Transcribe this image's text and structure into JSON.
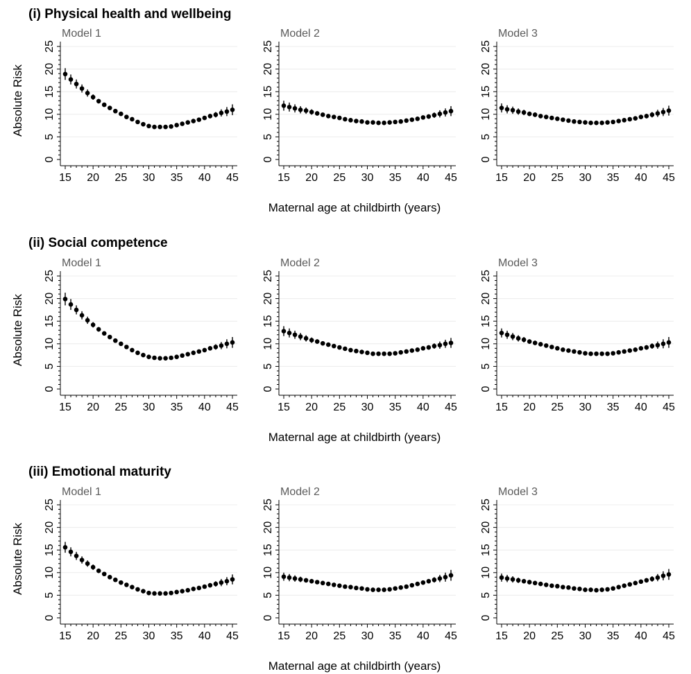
{
  "figure": {
    "xlabel": "Maternal age at childbirth (years)",
    "ylabel": "Absolute Risk",
    "sections": [
      {
        "title": "(i) Physical health and wellbeing"
      },
      {
        "title": "(ii) Social competence"
      },
      {
        "title": "(iii) Emotional maturity"
      }
    ]
  },
  "chart_data": [
    {
      "type": "scatter",
      "section": "(i) Physical health and wellbeing",
      "title": "Model 1",
      "xlabel": "Maternal age at childbirth (years)",
      "ylabel": "Absolute Risk",
      "xlim": [
        15,
        45
      ],
      "ylim": [
        0,
        25
      ],
      "xticks": [
        15,
        20,
        25,
        30,
        35,
        40,
        45
      ],
      "yticks": [
        0,
        5,
        10,
        15,
        20,
        25
      ],
      "grid": true,
      "x": [
        15,
        16,
        17,
        18,
        19,
        20,
        21,
        22,
        23,
        24,
        25,
        26,
        27,
        28,
        29,
        30,
        31,
        32,
        33,
        34,
        35,
        36,
        37,
        38,
        39,
        40,
        41,
        42,
        43,
        44,
        45
      ],
      "y": [
        18.9,
        17.7,
        16.7,
        15.7,
        14.7,
        13.8,
        12.9,
        12.1,
        11.4,
        10.7,
        10.1,
        9.4,
        8.9,
        8.3,
        7.8,
        7.4,
        7.2,
        7.2,
        7.2,
        7.3,
        7.6,
        7.9,
        8.2,
        8.5,
        8.8,
        9.2,
        9.6,
        9.9,
        10.3,
        10.6,
        11.0
      ],
      "ci": [
        1.3,
        1.1,
        1.0,
        0.9,
        0.8,
        0.6,
        0.5,
        0.4,
        0.3,
        0.3,
        0.2,
        0.2,
        0.2,
        0.2,
        0.2,
        0.2,
        0.2,
        0.2,
        0.2,
        0.2,
        0.2,
        0.2,
        0.2,
        0.3,
        0.3,
        0.4,
        0.5,
        0.6,
        0.8,
        1.0,
        1.2
      ]
    },
    {
      "type": "scatter",
      "section": "(i) Physical health and wellbeing",
      "title": "Model 2",
      "xlabel": "Maternal age at childbirth (years)",
      "ylabel": "Absolute Risk",
      "xlim": [
        15,
        45
      ],
      "ylim": [
        0,
        25
      ],
      "xticks": [
        15,
        20,
        25,
        30,
        35,
        40,
        45
      ],
      "yticks": [
        0,
        5,
        10,
        15,
        20,
        25
      ],
      "grid": true,
      "x": [
        15,
        16,
        17,
        18,
        19,
        20,
        21,
        22,
        23,
        24,
        25,
        26,
        27,
        28,
        29,
        30,
        31,
        32,
        33,
        34,
        35,
        36,
        37,
        38,
        39,
        40,
        41,
        42,
        43,
        44,
        45
      ],
      "y": [
        11.9,
        11.6,
        11.3,
        11.0,
        10.8,
        10.5,
        10.2,
        9.9,
        9.6,
        9.4,
        9.2,
        8.9,
        8.7,
        8.5,
        8.4,
        8.2,
        8.2,
        8.1,
        8.1,
        8.2,
        8.3,
        8.4,
        8.6,
        8.8,
        9.0,
        9.3,
        9.5,
        9.8,
        10.1,
        10.4,
        10.7
      ],
      "ci": [
        1.1,
        1.0,
        0.9,
        0.8,
        0.7,
        0.6,
        0.5,
        0.4,
        0.3,
        0.3,
        0.2,
        0.2,
        0.2,
        0.2,
        0.2,
        0.2,
        0.2,
        0.2,
        0.2,
        0.2,
        0.2,
        0.2,
        0.2,
        0.3,
        0.3,
        0.4,
        0.5,
        0.6,
        0.8,
        0.9,
        1.1
      ]
    },
    {
      "type": "scatter",
      "section": "(i) Physical health and wellbeing",
      "title": "Model 3",
      "xlabel": "Maternal age at childbirth (years)",
      "ylabel": "Absolute Risk",
      "xlim": [
        15,
        45
      ],
      "ylim": [
        0,
        25
      ],
      "xticks": [
        15,
        20,
        25,
        30,
        35,
        40,
        45
      ],
      "yticks": [
        0,
        5,
        10,
        15,
        20,
        25
      ],
      "grid": true,
      "x": [
        15,
        16,
        17,
        18,
        19,
        20,
        21,
        22,
        23,
        24,
        25,
        26,
        27,
        28,
        29,
        30,
        31,
        32,
        33,
        34,
        35,
        36,
        37,
        38,
        39,
        40,
        41,
        42,
        43,
        44,
        45
      ],
      "y": [
        11.4,
        11.1,
        10.9,
        10.6,
        10.4,
        10.1,
        9.9,
        9.6,
        9.4,
        9.2,
        9.0,
        8.8,
        8.6,
        8.4,
        8.3,
        8.2,
        8.1,
        8.1,
        8.1,
        8.2,
        8.3,
        8.5,
        8.7,
        8.9,
        9.1,
        9.4,
        9.6,
        9.9,
        10.2,
        10.5,
        10.8
      ],
      "ci": [
        1.0,
        0.9,
        0.8,
        0.7,
        0.6,
        0.5,
        0.5,
        0.4,
        0.3,
        0.3,
        0.2,
        0.2,
        0.2,
        0.2,
        0.2,
        0.2,
        0.2,
        0.2,
        0.2,
        0.2,
        0.2,
        0.2,
        0.2,
        0.3,
        0.3,
        0.4,
        0.5,
        0.6,
        0.8,
        0.9,
        1.1
      ]
    },
    {
      "type": "scatter",
      "section": "(ii) Social competence",
      "title": "Model 1",
      "xlabel": "Maternal age at childbirth (years)",
      "ylabel": "Absolute Risk",
      "xlim": [
        15,
        45
      ],
      "ylim": [
        0,
        25
      ],
      "xticks": [
        15,
        20,
        25,
        30,
        35,
        40,
        45
      ],
      "yticks": [
        0,
        5,
        10,
        15,
        20,
        25
      ],
      "grid": true,
      "x": [
        15,
        16,
        17,
        18,
        19,
        20,
        21,
        22,
        23,
        24,
        25,
        26,
        27,
        28,
        29,
        30,
        31,
        32,
        33,
        34,
        35,
        36,
        37,
        38,
        39,
        40,
        41,
        42,
        43,
        44,
        45
      ],
      "y": [
        19.9,
        18.7,
        17.5,
        16.3,
        15.2,
        14.2,
        13.2,
        12.3,
        11.5,
        10.7,
        10.0,
        9.3,
        8.6,
        8.0,
        7.5,
        7.1,
        6.9,
        6.8,
        6.8,
        6.9,
        7.1,
        7.4,
        7.7,
        8.0,
        8.3,
        8.6,
        9.0,
        9.3,
        9.6,
        10.0,
        10.3
      ],
      "ci": [
        1.4,
        1.2,
        1.0,
        0.9,
        0.8,
        0.6,
        0.5,
        0.4,
        0.3,
        0.3,
        0.2,
        0.2,
        0.2,
        0.2,
        0.2,
        0.2,
        0.2,
        0.2,
        0.2,
        0.2,
        0.2,
        0.2,
        0.2,
        0.3,
        0.3,
        0.4,
        0.5,
        0.6,
        0.8,
        1.0,
        1.2
      ]
    },
    {
      "type": "scatter",
      "section": "(ii) Social competence",
      "title": "Model 2",
      "xlabel": "Maternal age at childbirth (years)",
      "ylabel": "Absolute Risk",
      "xlim": [
        15,
        45
      ],
      "ylim": [
        0,
        25
      ],
      "xticks": [
        15,
        20,
        25,
        30,
        35,
        40,
        45
      ],
      "yticks": [
        0,
        5,
        10,
        15,
        20,
        25
      ],
      "grid": true,
      "x": [
        15,
        16,
        17,
        18,
        19,
        20,
        21,
        22,
        23,
        24,
        25,
        26,
        27,
        28,
        29,
        30,
        31,
        32,
        33,
        34,
        35,
        36,
        37,
        38,
        39,
        40,
        41,
        42,
        43,
        44,
        45
      ],
      "y": [
        12.8,
        12.4,
        12.0,
        11.6,
        11.2,
        10.8,
        10.5,
        10.1,
        9.8,
        9.5,
        9.2,
        8.9,
        8.6,
        8.4,
        8.2,
        8.0,
        7.8,
        7.8,
        7.8,
        7.8,
        7.9,
        8.1,
        8.3,
        8.5,
        8.7,
        9.0,
        9.2,
        9.5,
        9.7,
        10.0,
        10.2
      ],
      "ci": [
        1.1,
        1.0,
        0.9,
        0.8,
        0.7,
        0.6,
        0.5,
        0.4,
        0.3,
        0.3,
        0.2,
        0.2,
        0.2,
        0.2,
        0.2,
        0.2,
        0.2,
        0.2,
        0.2,
        0.2,
        0.2,
        0.2,
        0.2,
        0.3,
        0.3,
        0.4,
        0.5,
        0.6,
        0.8,
        0.9,
        1.1
      ]
    },
    {
      "type": "scatter",
      "section": "(ii) Social competence",
      "title": "Model 3",
      "xlabel": "Maternal age at childbirth (years)",
      "ylabel": "Absolute Risk",
      "xlim": [
        15,
        45
      ],
      "ylim": [
        0,
        25
      ],
      "xticks": [
        15,
        20,
        25,
        30,
        35,
        40,
        45
      ],
      "yticks": [
        0,
        5,
        10,
        15,
        20,
        25
      ],
      "grid": true,
      "x": [
        15,
        16,
        17,
        18,
        19,
        20,
        21,
        22,
        23,
        24,
        25,
        26,
        27,
        28,
        29,
        30,
        31,
        32,
        33,
        34,
        35,
        36,
        37,
        38,
        39,
        40,
        41,
        42,
        43,
        44,
        45
      ],
      "y": [
        12.4,
        12.0,
        11.6,
        11.2,
        10.9,
        10.5,
        10.2,
        9.9,
        9.6,
        9.3,
        9.0,
        8.7,
        8.5,
        8.3,
        8.1,
        7.9,
        7.8,
        7.8,
        7.8,
        7.8,
        7.9,
        8.1,
        8.3,
        8.5,
        8.7,
        9.0,
        9.2,
        9.5,
        9.7,
        10.0,
        10.3
      ],
      "ci": [
        1.0,
        0.9,
        0.8,
        0.7,
        0.6,
        0.5,
        0.5,
        0.4,
        0.3,
        0.3,
        0.2,
        0.2,
        0.2,
        0.2,
        0.2,
        0.2,
        0.2,
        0.2,
        0.2,
        0.2,
        0.2,
        0.2,
        0.2,
        0.3,
        0.3,
        0.4,
        0.5,
        0.6,
        0.8,
        1.0,
        1.2
      ]
    },
    {
      "type": "scatter",
      "section": "(iii) Emotional maturity",
      "title": "Model 1",
      "xlabel": "Maternal age at childbirth (years)",
      "ylabel": "Absolute Risk",
      "xlim": [
        15,
        45
      ],
      "ylim": [
        0,
        25
      ],
      "xticks": [
        15,
        20,
        25,
        30,
        35,
        40,
        45
      ],
      "yticks": [
        0,
        5,
        10,
        15,
        20,
        25
      ],
      "grid": true,
      "x": [
        15,
        16,
        17,
        18,
        19,
        20,
        21,
        22,
        23,
        24,
        25,
        26,
        27,
        28,
        29,
        30,
        31,
        32,
        33,
        34,
        35,
        36,
        37,
        38,
        39,
        40,
        41,
        42,
        43,
        44,
        45
      ],
      "y": [
        15.6,
        14.6,
        13.7,
        12.8,
        12.0,
        11.2,
        10.4,
        9.7,
        9.0,
        8.4,
        7.8,
        7.3,
        6.8,
        6.3,
        5.9,
        5.5,
        5.4,
        5.4,
        5.4,
        5.5,
        5.7,
        5.9,
        6.1,
        6.4,
        6.6,
        6.9,
        7.2,
        7.5,
        7.8,
        8.1,
        8.5
      ],
      "ci": [
        1.2,
        1.0,
        0.9,
        0.8,
        0.7,
        0.6,
        0.5,
        0.4,
        0.3,
        0.3,
        0.2,
        0.2,
        0.2,
        0.2,
        0.2,
        0.2,
        0.2,
        0.2,
        0.2,
        0.2,
        0.2,
        0.2,
        0.2,
        0.3,
        0.3,
        0.4,
        0.5,
        0.6,
        0.8,
        0.9,
        1.1
      ]
    },
    {
      "type": "scatter",
      "section": "(iii) Emotional maturity",
      "title": "Model 2",
      "xlabel": "Maternal age at childbirth (years)",
      "ylabel": "Absolute Risk",
      "xlim": [
        15,
        45
      ],
      "ylim": [
        0,
        25
      ],
      "xticks": [
        15,
        20,
        25,
        30,
        35,
        40,
        45
      ],
      "yticks": [
        0,
        5,
        10,
        15,
        20,
        25
      ],
      "grid": true,
      "x": [
        15,
        16,
        17,
        18,
        19,
        20,
        21,
        22,
        23,
        24,
        25,
        26,
        27,
        28,
        29,
        30,
        31,
        32,
        33,
        34,
        35,
        36,
        37,
        38,
        39,
        40,
        41,
        42,
        43,
        44,
        45
      ],
      "y": [
        9.1,
        8.9,
        8.7,
        8.5,
        8.3,
        8.1,
        7.9,
        7.7,
        7.5,
        7.3,
        7.1,
        6.9,
        6.8,
        6.6,
        6.5,
        6.3,
        6.2,
        6.2,
        6.2,
        6.3,
        6.5,
        6.7,
        6.9,
        7.2,
        7.5,
        7.8,
        8.1,
        8.4,
        8.7,
        9.0,
        9.4
      ],
      "ci": [
        0.9,
        0.8,
        0.7,
        0.6,
        0.5,
        0.5,
        0.4,
        0.4,
        0.3,
        0.3,
        0.2,
        0.2,
        0.2,
        0.2,
        0.2,
        0.2,
        0.2,
        0.2,
        0.2,
        0.2,
        0.2,
        0.2,
        0.2,
        0.3,
        0.3,
        0.4,
        0.5,
        0.6,
        0.8,
        1.0,
        1.2
      ]
    },
    {
      "type": "scatter",
      "section": "(iii) Emotional maturity",
      "title": "Model 3",
      "xlabel": "Maternal age at childbirth (years)",
      "ylabel": "Absolute Risk",
      "xlim": [
        15,
        45
      ],
      "ylim": [
        0,
        25
      ],
      "xticks": [
        15,
        20,
        25,
        30,
        35,
        40,
        45
      ],
      "yticks": [
        0,
        5,
        10,
        15,
        20,
        25
      ],
      "grid": true,
      "x": [
        15,
        16,
        17,
        18,
        19,
        20,
        21,
        22,
        23,
        24,
        25,
        26,
        27,
        28,
        29,
        30,
        31,
        32,
        33,
        34,
        35,
        36,
        37,
        38,
        39,
        40,
        41,
        42,
        43,
        44,
        45
      ],
      "y": [
        8.9,
        8.7,
        8.5,
        8.3,
        8.1,
        7.9,
        7.7,
        7.5,
        7.3,
        7.1,
        7.0,
        6.8,
        6.7,
        6.5,
        6.4,
        6.2,
        6.2,
        6.1,
        6.2,
        6.3,
        6.5,
        6.8,
        7.1,
        7.4,
        7.7,
        8.0,
        8.3,
        8.6,
        8.9,
        9.3,
        9.6
      ],
      "ci": [
        0.9,
        0.8,
        0.7,
        0.6,
        0.5,
        0.5,
        0.4,
        0.4,
        0.3,
        0.3,
        0.2,
        0.2,
        0.2,
        0.2,
        0.2,
        0.2,
        0.2,
        0.2,
        0.2,
        0.2,
        0.2,
        0.2,
        0.2,
        0.3,
        0.3,
        0.4,
        0.5,
        0.6,
        0.8,
        1.0,
        1.2
      ]
    }
  ]
}
